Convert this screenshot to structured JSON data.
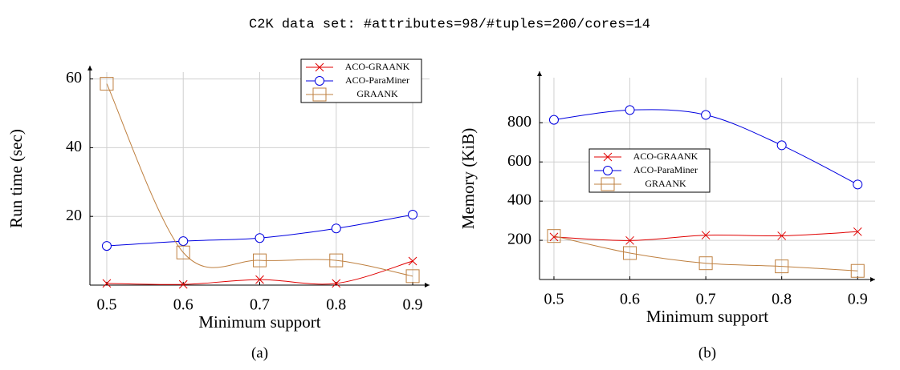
{
  "title": "C2K data set:  #attributes=98/#tuples=200/cores=14",
  "chart_data": [
    {
      "type": "line",
      "caption": "(a)",
      "xlabel": "Minimum support",
      "ylabel": "Run time (sec)",
      "x": [
        0.5,
        0.6,
        0.7,
        0.8,
        0.9
      ],
      "xlim": [
        0.478,
        0.922
      ],
      "xticks": [
        0.5,
        0.6,
        0.7,
        0.8,
        0.9
      ],
      "ylim": [
        0,
        62
      ],
      "yticks": [
        20,
        40,
        60
      ],
      "grid": true,
      "legend": "upper right",
      "series": [
        {
          "name": "ACO-GRAANK",
          "color": "#e00000",
          "marker": "x",
          "values": [
            0.5,
            0.2,
            1.6,
            0.5,
            7
          ]
        },
        {
          "name": "ACO-ParaMiner",
          "color": "#0000e0",
          "marker": "circle",
          "values": [
            11.4,
            12.8,
            13.7,
            16.5,
            20.5
          ]
        },
        {
          "name": "GRAANK",
          "color": "#bf8040",
          "marker": "square",
          "values": [
            58.6,
            9.5,
            7.2,
            7.2,
            2.6
          ]
        }
      ]
    },
    {
      "type": "line",
      "caption": "(b)",
      "xlabel": "Minimum support",
      "ylabel": "Memory (KiB)",
      "x": [
        0.5,
        0.6,
        0.7,
        0.8,
        0.9
      ],
      "xlim": [
        0.481,
        0.923
      ],
      "xticks": [
        0.5,
        0.6,
        0.7,
        0.8,
        0.9
      ],
      "ylim": [
        0,
        1030
      ],
      "yticks": [
        200,
        400,
        600,
        800
      ],
      "grid": true,
      "legend": "center left",
      "series": [
        {
          "name": "ACO-GRAANK",
          "color": "#e00000",
          "marker": "x",
          "values": [
            217,
            199,
            226,
            223,
            244
          ]
        },
        {
          "name": "ACO-ParaMiner",
          "color": "#0000e0",
          "marker": "circle",
          "values": [
            815,
            865,
            840,
            685,
            485
          ]
        },
        {
          "name": "GRAANK",
          "color": "#bf8040",
          "marker": "square",
          "values": [
            222,
            135,
            83,
            67,
            44
          ]
        }
      ]
    }
  ]
}
